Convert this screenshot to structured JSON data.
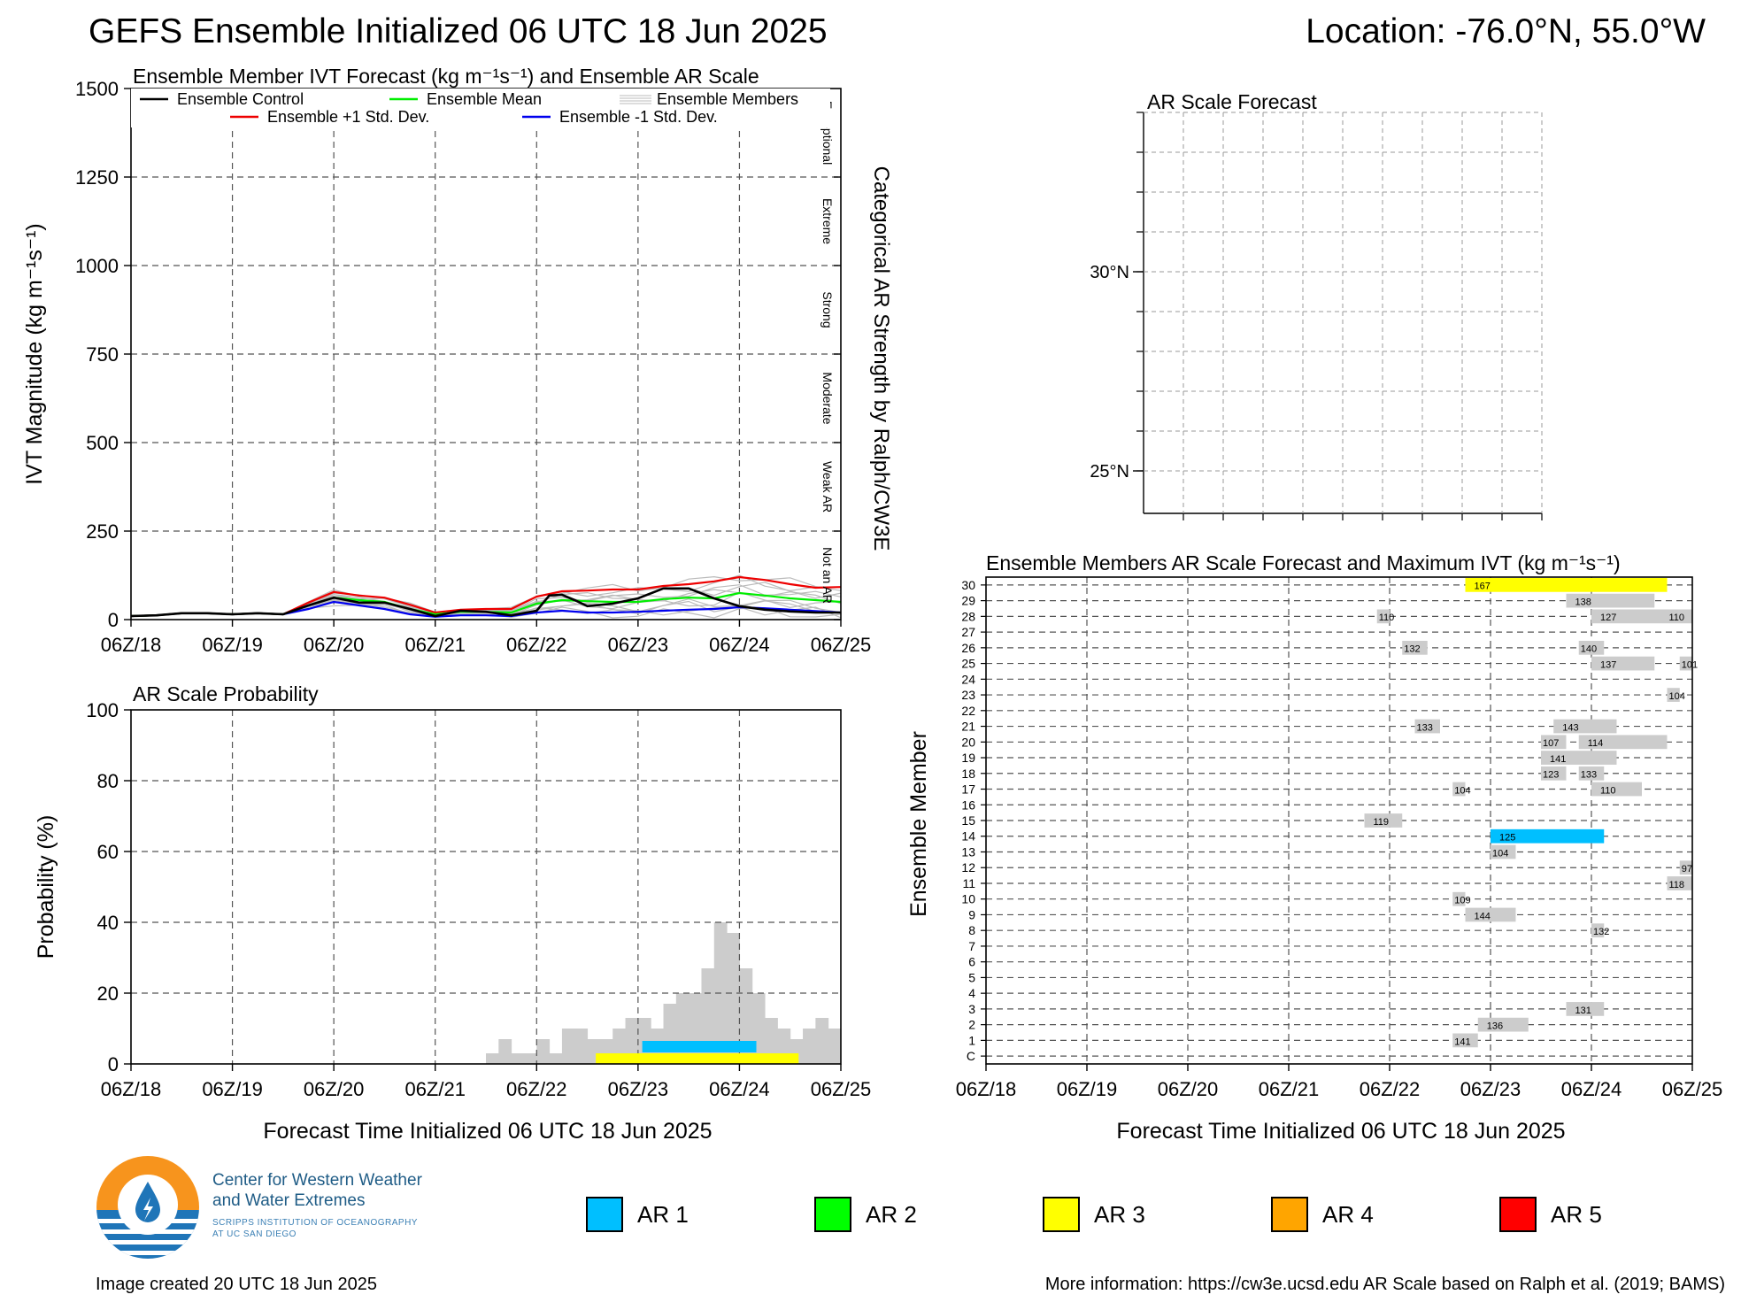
{
  "header": {
    "title": "GEFS Ensemble Initialized 06 UTC 18 Jun 2025",
    "location": "Location: -76.0°N, 55.0°W"
  },
  "footer": {
    "created": "Image created 20 UTC 18 Jun 2025",
    "info": "More information: https://cw3e.ucsd.edu AR Scale based on Ralph et al. (2019; BAMS)"
  },
  "logo": {
    "line1": "Center for Western Weather",
    "line2": "and Water Extremes",
    "sub1": "SCRIPPS INSTITUTION OF OCEANOGRAPHY",
    "sub2": "AT UC SAN DIEGO",
    "colors": {
      "orange": "#f7941d",
      "blue": "#1f75b8"
    }
  },
  "ar_legend": [
    {
      "label": "AR 1",
      "color": "#00bfff"
    },
    {
      "label": "AR 2",
      "color": "#00ff00"
    },
    {
      "label": "AR 3",
      "color": "#ffff00"
    },
    {
      "label": "AR 4",
      "color": "#ffa500"
    },
    {
      "label": "AR 5",
      "color": "#ff0000"
    }
  ],
  "chart_data": [
    {
      "id": "ivt",
      "type": "line",
      "title": "Ensemble Member IVT Forecast (kg m⁻¹s⁻¹) and Ensemble AR Scale",
      "ylabel": "IVT Magnitude (kg m⁻¹s⁻¹)",
      "right_label": "Categorical AR Strength by Ralph/CW3E",
      "categories": [
        "Exceptional",
        "Extreme",
        "Strong",
        "Moderate",
        "Weak AR",
        "Not an AR"
      ],
      "ylim": [
        0,
        1500
      ],
      "yticks": [
        0,
        250,
        500,
        750,
        1000,
        1250,
        1500
      ],
      "xlim_hours": [
        0,
        168
      ],
      "xticks": [
        "06Z/18",
        "06Z/19",
        "06Z/20",
        "06Z/21",
        "06Z/22",
        "06Z/23",
        "06Z/24",
        "06Z/25"
      ],
      "grid": true,
      "legend": [
        {
          "name": "Ensemble Control",
          "color": "#000000"
        },
        {
          "name": "Ensemble Mean",
          "color": "#00ee00"
        },
        {
          "name": "Ensemble Members",
          "color": "#bbbbbb"
        },
        {
          "name": "Ensemble +1 Std. Dev.",
          "color": "#ee0000"
        },
        {
          "name": "Ensemble -1 Std. Dev.",
          "color": "#0000ee"
        }
      ],
      "series": [
        {
          "name": "Ensemble Control",
          "color": "#000000",
          "x": [
            0,
            6,
            12,
            18,
            24,
            30,
            36,
            42,
            48,
            54,
            60,
            66,
            72,
            78,
            84,
            90,
            96,
            99,
            102,
            105,
            108,
            114,
            120,
            126,
            132,
            138,
            144,
            150,
            156,
            162,
            168
          ],
          "y": [
            10,
            12,
            18,
            18,
            15,
            18,
            15,
            40,
            62,
            48,
            48,
            30,
            10,
            25,
            22,
            12,
            25,
            68,
            70,
            55,
            38,
            45,
            60,
            88,
            88,
            60,
            38,
            28,
            23,
            20,
            20
          ]
        },
        {
          "name": "Ensemble Mean",
          "color": "#00ee00",
          "x": [
            0,
            6,
            12,
            18,
            24,
            30,
            36,
            42,
            48,
            54,
            60,
            66,
            72,
            78,
            84,
            90,
            96,
            102,
            108,
            114,
            120,
            126,
            132,
            138,
            144,
            150,
            156,
            162,
            168
          ],
          "y": [
            10,
            12,
            18,
            18,
            15,
            18,
            15,
            40,
            62,
            55,
            50,
            30,
            15,
            22,
            22,
            20,
            45,
            55,
            52,
            50,
            50,
            58,
            62,
            60,
            75,
            68,
            60,
            55,
            50
          ]
        },
        {
          "name": "Ensemble +1 Std. Dev.",
          "color": "#ee0000",
          "x": [
            0,
            6,
            12,
            18,
            24,
            30,
            36,
            42,
            48,
            54,
            60,
            66,
            72,
            78,
            84,
            90,
            96,
            102,
            108,
            114,
            120,
            126,
            132,
            138,
            144,
            150,
            156,
            162,
            168
          ],
          "y": [
            10,
            12,
            18,
            18,
            15,
            18,
            15,
            48,
            78,
            68,
            62,
            42,
            20,
            28,
            30,
            30,
            65,
            80,
            82,
            85,
            85,
            95,
            100,
            108,
            120,
            112,
            100,
            90,
            92
          ]
        },
        {
          "name": "Ensemble -1 Std. Dev.",
          "color": "#0000ee",
          "x": [
            0,
            6,
            12,
            18,
            24,
            30,
            36,
            42,
            48,
            54,
            60,
            66,
            72,
            78,
            84,
            90,
            96,
            102,
            108,
            114,
            120,
            126,
            132,
            138,
            144,
            150,
            156,
            162,
            168
          ],
          "y": [
            10,
            12,
            18,
            18,
            15,
            18,
            15,
            30,
            50,
            40,
            30,
            15,
            8,
            12,
            12,
            10,
            20,
            25,
            20,
            20,
            22,
            25,
            28,
            30,
            35,
            32,
            28,
            24,
            20
          ]
        }
      ]
    },
    {
      "id": "prob",
      "type": "bar",
      "title": "AR Scale Probability",
      "ylabel": "Probability (%)",
      "xlabel": "Forecast Time Initialized 06 UTC 18 Jun 2025",
      "ylim": [
        0,
        100
      ],
      "yticks": [
        0,
        20,
        40,
        60,
        80,
        100
      ],
      "xticks": [
        "06Z/18",
        "06Z/19",
        "06Z/20",
        "06Z/21",
        "06Z/22",
        "06Z/23",
        "06Z/24",
        "06Z/25"
      ],
      "grid": true,
      "bar_width_hours": 3,
      "x_hours": [
        87,
        90,
        93,
        96,
        99,
        102,
        105,
        108,
        111,
        114,
        117,
        120,
        123,
        126,
        129,
        132,
        135,
        138,
        141,
        144,
        147,
        150,
        153,
        156,
        159,
        162,
        165,
        168
      ],
      "values": [
        3,
        7,
        3,
        3,
        7,
        3,
        10,
        10,
        7,
        7,
        10,
        13,
        13,
        10,
        17,
        20,
        20,
        27,
        40,
        37,
        27,
        20,
        13,
        10,
        7,
        10,
        13,
        10
      ],
      "ar_bands": [
        {
          "category": "AR 3",
          "color": "#ffff00",
          "start_hours": 110,
          "end_hours": 158
        },
        {
          "category": "AR 1",
          "color": "#00bfff",
          "start_hours": 121,
          "end_hours": 148
        }
      ]
    },
    {
      "id": "map",
      "type": "map",
      "title": "AR Scale Forecast",
      "yticks": [
        "30°N",
        "25°N"
      ],
      "grid": true
    },
    {
      "id": "members",
      "type": "heatmap",
      "title": "Ensemble Members AR Scale Forecast and Maximum IVT (kg m⁻¹s⁻¹)",
      "ylabel": "Ensemble Member",
      "xlabel": "Forecast Time Initialized 06 UTC 18 Jun 2025",
      "members": [
        "C",
        "1",
        "2",
        "3",
        "4",
        "5",
        "6",
        "7",
        "8",
        "9",
        "10",
        "11",
        "12",
        "13",
        "14",
        "15",
        "16",
        "17",
        "18",
        "19",
        "20",
        "21",
        "22",
        "23",
        "24",
        "25",
        "26",
        "27",
        "28",
        "29",
        "30"
      ],
      "xticks": [
        "06Z/18",
        "06Z/19",
        "06Z/20",
        "06Z/21",
        "06Z/22",
        "06Z/23",
        "06Z/24",
        "06Z/25"
      ],
      "cells": [
        {
          "member": "30",
          "start": 114,
          "end": 162,
          "color": "#ffff00",
          "ivt": "167"
        },
        {
          "member": "29",
          "start": 138,
          "end": 159,
          "color": "#cccccc",
          "ivt": "138"
        },
        {
          "member": "28",
          "start": 93,
          "end": 96,
          "color": "#cccccc",
          "ivt": "110"
        },
        {
          "member": "28",
          "start": 144,
          "end": 162,
          "color": "#cccccc",
          "ivt": "127"
        },
        {
          "member": "28",
          "start": 162,
          "end": 168,
          "color": "#cccccc",
          "ivt": "110"
        },
        {
          "member": "26",
          "start": 99,
          "end": 105,
          "color": "#cccccc",
          "ivt": "132"
        },
        {
          "member": "26",
          "start": 141,
          "end": 147,
          "color": "#cccccc",
          "ivt": "140"
        },
        {
          "member": "25",
          "start": 144,
          "end": 159,
          "color": "#cccccc",
          "ivt": "137"
        },
        {
          "member": "25",
          "start": 165,
          "end": 168,
          "color": "#cccccc",
          "ivt": "101"
        },
        {
          "member": "23",
          "start": 162,
          "end": 165,
          "color": "#cccccc",
          "ivt": "104"
        },
        {
          "member": "21",
          "start": 102,
          "end": 108,
          "color": "#cccccc",
          "ivt": "133"
        },
        {
          "member": "21",
          "start": 135,
          "end": 150,
          "color": "#cccccc",
          "ivt": "143"
        },
        {
          "member": "20",
          "start": 132,
          "end": 138,
          "color": "#cccccc",
          "ivt": "107"
        },
        {
          "member": "20",
          "start": 141,
          "end": 162,
          "color": "#cccccc",
          "ivt": "114"
        },
        {
          "member": "19",
          "start": 132,
          "end": 150,
          "color": "#cccccc",
          "ivt": "141"
        },
        {
          "member": "18",
          "start": 132,
          "end": 138,
          "color": "#cccccc",
          "ivt": "123"
        },
        {
          "member": "18",
          "start": 141,
          "end": 147,
          "color": "#cccccc",
          "ivt": "133"
        },
        {
          "member": "17",
          "start": 111,
          "end": 114,
          "color": "#cccccc",
          "ivt": "104"
        },
        {
          "member": "17",
          "start": 144,
          "end": 156,
          "color": "#cccccc",
          "ivt": "110"
        },
        {
          "member": "15",
          "start": 90,
          "end": 99,
          "color": "#cccccc",
          "ivt": "119"
        },
        {
          "member": "14",
          "start": 120,
          "end": 147,
          "color": "#00bfff",
          "ivt": "125"
        },
        {
          "member": "13",
          "start": 120,
          "end": 126,
          "color": "#cccccc",
          "ivt": "104"
        },
        {
          "member": "12",
          "start": 165,
          "end": 168,
          "color": "#cccccc",
          "ivt": "97"
        },
        {
          "member": "11",
          "start": 162,
          "end": 168,
          "color": "#cccccc",
          "ivt": "118"
        },
        {
          "member": "10",
          "start": 111,
          "end": 114,
          "color": "#cccccc",
          "ivt": "109"
        },
        {
          "member": "9",
          "start": 114,
          "end": 126,
          "color": "#cccccc",
          "ivt": "144"
        },
        {
          "member": "8",
          "start": 144,
          "end": 147,
          "color": "#cccccc",
          "ivt": "132"
        },
        {
          "member": "3",
          "start": 138,
          "end": 147,
          "color": "#cccccc",
          "ivt": "131"
        },
        {
          "member": "2",
          "start": 117,
          "end": 129,
          "color": "#cccccc",
          "ivt": "136"
        },
        {
          "member": "1",
          "start": 111,
          "end": 117,
          "color": "#cccccc",
          "ivt": "141"
        }
      ]
    }
  ]
}
